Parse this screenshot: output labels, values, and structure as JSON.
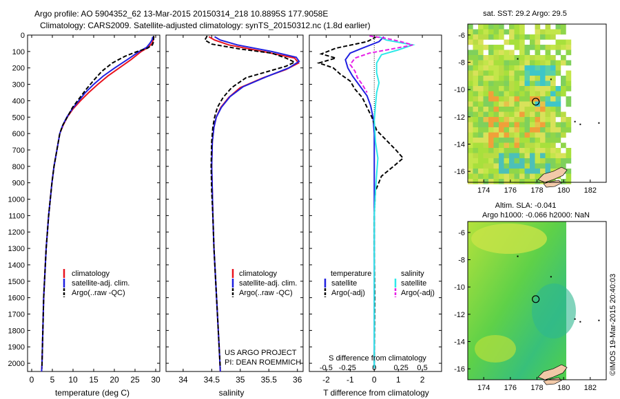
{
  "header": {
    "line1": "Argo profile: AO 5904352_62 13-Mar-2015 20150314_218 10.8895S 177.9058E",
    "line2": "Climatology: CARS2009. Satellite-adjusted climatology: synTS_20150312.nc (1.8d earlier)"
  },
  "panels": {
    "temperature": {
      "xlabel": "temperature (deg C)",
      "legend": [
        "climatology",
        "satellite-adj. clim.",
        "Argo(..raw -QC)"
      ]
    },
    "salinity": {
      "xlabel": "salinity",
      "legend": [
        "climatology",
        "satellite-adj. clim.",
        "Argo(..raw -QC)"
      ],
      "credit1": "US ARGO PROJECT",
      "credit2": "PI: DEAN ROEMMICH"
    },
    "difference": {
      "xlabel": "T difference from climatology",
      "top_xlabel": "S difference from climatology",
      "legend_t_title": "temperature",
      "legend_s_title": "salinity",
      "legend_t": [
        "satellite",
        "Argo(-adj)"
      ],
      "legend_s": [
        "satellite",
        "Argo(-adj)"
      ]
    },
    "map_sst": {
      "title": "sat. SST: 29.2  Argo: 29.5"
    },
    "map_sla": {
      "title1": "Altim. SLA: -0.041",
      "title2": "Argo h1000: -0.066 h2000: NaN"
    }
  },
  "watermark": "©IMOS 19-Mar-2015 20:40:03",
  "colors": {
    "climatology": "#e8121e",
    "satellite": "#1f1fe0",
    "argo": "#000000",
    "sal_satellite": "#2ee8e8",
    "sal_argo": "#e61ee6"
  },
  "chart_data": [
    {
      "type": "line",
      "name": "temperature",
      "xlim": [
        -1,
        31
      ],
      "ylim": [
        2050,
        0
      ],
      "xticks": [
        0,
        5,
        10,
        15,
        20,
        25,
        30
      ],
      "yticks": [
        0,
        100,
        200,
        300,
        400,
        500,
        600,
        700,
        800,
        900,
        1000,
        1100,
        1200,
        1300,
        1400,
        1500,
        1600,
        1700,
        1800,
        1900,
        2000
      ],
      "series": [
        {
          "name": "climatology",
          "points": [
            [
              29.6,
              10
            ],
            [
              29.4,
              30
            ],
            [
              29.1,
              50
            ],
            [
              28.2,
              75
            ],
            [
              26.5,
              100
            ],
            [
              24.0,
              150
            ],
            [
              21.2,
              200
            ],
            [
              18.4,
              250
            ],
            [
              16.0,
              300
            ],
            [
              13.8,
              350
            ],
            [
              11.8,
              400
            ],
            [
              10.0,
              450
            ],
            [
              8.6,
              500
            ],
            [
              7.6,
              550
            ],
            [
              6.8,
              600
            ],
            [
              6.1,
              700
            ],
            [
              5.4,
              800
            ],
            [
              4.9,
              900
            ],
            [
              4.5,
              1000
            ],
            [
              4.1,
              1100
            ],
            [
              3.8,
              1200
            ],
            [
              3.5,
              1300
            ],
            [
              3.3,
              1400
            ],
            [
              3.1,
              1500
            ],
            [
              2.9,
              1600
            ],
            [
              2.8,
              1700
            ],
            [
              2.7,
              1800
            ],
            [
              2.6,
              1900
            ],
            [
              2.5,
              2000
            ],
            [
              2.4,
              2050
            ]
          ]
        },
        {
          "name": "satellite-adj. clim.",
          "points": [
            [
              29.3,
              10
            ],
            [
              29.1,
              30
            ],
            [
              28.6,
              50
            ],
            [
              27.8,
              75
            ],
            [
              26.0,
              100
            ],
            [
              23.1,
              150
            ],
            [
              20.1,
              200
            ],
            [
              17.3,
              250
            ],
            [
              15.0,
              300
            ],
            [
              13.0,
              350
            ],
            [
              11.4,
              400
            ],
            [
              9.8,
              450
            ],
            [
              8.5,
              500
            ],
            [
              7.5,
              550
            ],
            [
              6.8,
              600
            ],
            [
              6.1,
              700
            ],
            [
              5.4,
              800
            ],
            [
              4.9,
              900
            ],
            [
              4.5,
              1000
            ],
            [
              4.1,
              1100
            ],
            [
              3.8,
              1200
            ],
            [
              3.5,
              1300
            ],
            [
              3.3,
              1400
            ],
            [
              3.1,
              1500
            ],
            [
              2.9,
              1600
            ],
            [
              2.8,
              1700
            ],
            [
              2.7,
              1800
            ],
            [
              2.6,
              1900
            ],
            [
              2.5,
              2000
            ],
            [
              2.4,
              2050
            ]
          ]
        },
        {
          "name": "Argo(..raw -QC)",
          "points": [
            [
              29.5,
              5
            ],
            [
              29.5,
              40
            ],
            [
              29.2,
              60
            ],
            [
              28.0,
              80
            ],
            [
              25.5,
              100
            ],
            [
              22.5,
              130
            ],
            [
              19.5,
              170
            ],
            [
              17.0,
              220
            ],
            [
              15.2,
              270
            ],
            [
              13.2,
              330
            ],
            [
              11.4,
              390
            ],
            [
              9.9,
              440
            ],
            [
              8.6,
              500
            ],
            [
              7.5,
              550
            ],
            [
              6.8,
              600
            ],
            [
              6.1,
              700
            ],
            [
              5.4,
              800
            ],
            [
              4.9,
              900
            ],
            [
              4.5,
              1000
            ],
            [
              4.1,
              1100
            ],
            [
              3.8,
              1200
            ],
            [
              3.5,
              1300
            ],
            [
              3.3,
              1400
            ],
            [
              3.1,
              1500
            ],
            [
              2.9,
              1600
            ],
            [
              2.8,
              1700
            ],
            [
              2.7,
              1800
            ],
            [
              2.6,
              1900
            ],
            [
              2.5,
              2000
            ],
            [
              2.5,
              2030
            ]
          ]
        }
      ]
    },
    {
      "type": "line",
      "name": "salinity",
      "xlim": [
        33.7,
        36.1
      ],
      "ylim": [
        2050,
        0
      ],
      "xticks": [
        34,
        34.5,
        35,
        35.5,
        36
      ],
      "series": [
        {
          "name": "climatology",
          "points": [
            [
              34.45,
              10
            ],
            [
              34.55,
              30
            ],
            [
              34.8,
              60
            ],
            [
              35.4,
              100
            ],
            [
              35.95,
              140
            ],
            [
              36.02,
              170
            ],
            [
              35.8,
              210
            ],
            [
              35.4,
              260
            ],
            [
              35.0,
              320
            ],
            [
              34.8,
              380
            ],
            [
              34.66,
              440
            ],
            [
              34.58,
              500
            ],
            [
              34.54,
              560
            ],
            [
              34.51,
              650
            ],
            [
              34.5,
              800
            ],
            [
              34.51,
              950
            ],
            [
              34.52,
              1100
            ],
            [
              34.54,
              1300
            ],
            [
              34.57,
              1500
            ],
            [
              34.6,
              1700
            ],
            [
              34.63,
              1900
            ],
            [
              34.65,
              2050
            ]
          ]
        },
        {
          "name": "satellite-adj. clim.",
          "points": [
            [
              34.55,
              10
            ],
            [
              34.65,
              30
            ],
            [
              34.95,
              60
            ],
            [
              35.55,
              100
            ],
            [
              35.98,
              135
            ],
            [
              36.03,
              160
            ],
            [
              35.85,
              200
            ],
            [
              35.45,
              255
            ],
            [
              35.05,
              315
            ],
            [
              34.82,
              375
            ],
            [
              34.67,
              440
            ],
            [
              34.58,
              500
            ],
            [
              34.54,
              560
            ],
            [
              34.51,
              650
            ],
            [
              34.5,
              800
            ],
            [
              34.51,
              950
            ],
            [
              34.52,
              1100
            ],
            [
              34.54,
              1300
            ],
            [
              34.57,
              1500
            ],
            [
              34.6,
              1700
            ],
            [
              34.63,
              1900
            ],
            [
              34.65,
              2050
            ]
          ]
        },
        {
          "name": "Argo(..raw -QC)",
          "points": [
            [
              34.42,
              5
            ],
            [
              34.38,
              30
            ],
            [
              34.5,
              55
            ],
            [
              35.0,
              85
            ],
            [
              35.55,
              110
            ],
            [
              35.8,
              140
            ],
            [
              35.95,
              165
            ],
            [
              35.8,
              190
            ],
            [
              35.5,
              220
            ],
            [
              35.1,
              260
            ],
            [
              34.85,
              320
            ],
            [
              34.7,
              380
            ],
            [
              34.6,
              440
            ],
            [
              34.55,
              500
            ],
            [
              34.52,
              560
            ],
            [
              34.5,
              650
            ],
            [
              34.49,
              800
            ],
            [
              34.5,
              950
            ],
            [
              34.52,
              1100
            ],
            [
              34.54,
              1300
            ],
            [
              34.57,
              1500
            ],
            [
              34.6,
              1700
            ],
            [
              34.63,
              1900
            ],
            [
              34.65,
              2030
            ]
          ]
        }
      ]
    },
    {
      "type": "line",
      "name": "difference",
      "xlim": [
        -2.7,
        2.8
      ],
      "ylim": [
        2050,
        0
      ],
      "xticks": [
        -2,
        -1,
        0,
        1,
        2
      ],
      "top_xticks": [
        "-0.5",
        "-0.25",
        "0",
        "0.25",
        "0.5"
      ],
      "series": [
        {
          "name": "temperature satellite",
          "points": [
            [
              0.4,
              10
            ],
            [
              0.2,
              40
            ],
            [
              -0.5,
              80
            ],
            [
              -1.0,
              110
            ],
            [
              -1.2,
              150
            ],
            [
              -1.1,
              200
            ],
            [
              -0.9,
              250
            ],
            [
              -0.6,
              310
            ],
            [
              -0.3,
              370
            ],
            [
              -0.15,
              430
            ],
            [
              -0.05,
              500
            ],
            [
              0,
              600
            ],
            [
              0,
              2030
            ]
          ]
        },
        {
          "name": "temperature Argo(-adj)",
          "points": [
            [
              0.1,
              10
            ],
            [
              -0.3,
              40
            ],
            [
              -1.6,
              80
            ],
            [
              -2.2,
              115
            ],
            [
              -1.6,
              140
            ],
            [
              -2.3,
              170
            ],
            [
              -1.7,
              200
            ],
            [
              -1.4,
              240
            ],
            [
              -1.0,
              280
            ],
            [
              -0.8,
              330
            ],
            [
              -0.5,
              380
            ],
            [
              -0.3,
              440
            ],
            [
              -0.1,
              500
            ],
            [
              0.1,
              580
            ],
            [
              0.5,
              640
            ],
            [
              0.9,
              700
            ],
            [
              1.2,
              750
            ],
            [
              0.8,
              800
            ],
            [
              0.3,
              860
            ],
            [
              0.05,
              950
            ],
            [
              0,
              1100
            ],
            [
              0,
              1300
            ],
            [
              0.02,
              1600
            ],
            [
              0,
              2030
            ]
          ]
        },
        {
          "name": "salinity satellite",
          "points": [
            [
              0.2,
              10
            ],
            [
              0.5,
              30
            ],
            [
              1.6,
              60
            ],
            [
              1.0,
              90
            ],
            [
              0.3,
              120
            ],
            [
              0.1,
              170
            ],
            [
              0.1,
              230
            ],
            [
              0.2,
              290
            ],
            [
              0.1,
              350
            ],
            [
              0.05,
              430
            ],
            [
              0,
              520
            ],
            [
              0.05,
              650
            ],
            [
              0.15,
              750
            ],
            [
              0.1,
              850
            ],
            [
              0.05,
              950
            ],
            [
              0,
              1100
            ],
            [
              0,
              2030
            ]
          ]
        },
        {
          "name": "salinity Argo(-adj)",
          "points": [
            [
              -0.2,
              5
            ],
            [
              0.5,
              20
            ],
            [
              1.1,
              40
            ],
            [
              1.6,
              60
            ],
            [
              0.9,
              80
            ],
            [
              -0.2,
              110
            ],
            [
              -0.8,
              140
            ],
            [
              -1.0,
              180
            ],
            [
              -0.8,
              220
            ],
            [
              -0.7,
              260
            ],
            [
              -0.5,
              300
            ],
            [
              -0.3,
              350
            ]
          ]
        }
      ]
    },
    {
      "type": "heatmap",
      "name": "sat. SST map",
      "xticks": [
        174,
        176,
        178,
        180,
        182
      ],
      "yticks": [
        -6,
        -8,
        -10,
        -12,
        -14,
        -16
      ],
      "xlim": [
        172.8,
        183.2
      ],
      "ylim": [
        -16.8,
        -5.2
      ],
      "marker": [
        177.9058,
        -10.8895
      ]
    },
    {
      "type": "heatmap",
      "name": "altimetry SLA map",
      "xticks": [
        174,
        176,
        178,
        180,
        182
      ],
      "yticks": [
        -6,
        -8,
        -10,
        -12,
        -14,
        -16
      ],
      "xlim": [
        172.8,
        183.2
      ],
      "ylim": [
        -16.8,
        -5.2
      ],
      "marker": [
        177.9058,
        -10.8895
      ]
    }
  ]
}
